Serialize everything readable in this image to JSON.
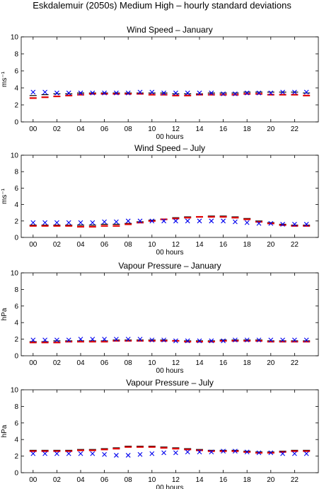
{
  "figure_title": "Eskdalemuir (2050s) Medium High – hourly standard deviations",
  "legend_note": "",
  "colors": {
    "black_marker": "#000000",
    "red_marker": "#e00000",
    "blue_marker": "#0000ee",
    "axes": "#000000"
  },
  "chart_data": [
    {
      "type": "scatter",
      "title": "Wind Speed – January",
      "xlabel": "00 hours",
      "ylabel": "ms⁻¹",
      "xlim": [
        -1,
        24
      ],
      "ylim": [
        0,
        10
      ],
      "xticks": [
        "00",
        "02",
        "04",
        "06",
        "08",
        "10",
        "12",
        "14",
        "16",
        "18",
        "20",
        "22"
      ],
      "yticks": [
        "0",
        "2",
        "4",
        "6",
        "8",
        "10"
      ],
      "x": [
        0,
        1,
        2,
        3,
        4,
        5,
        6,
        7,
        8,
        9,
        10,
        11,
        12,
        13,
        14,
        15,
        16,
        17,
        18,
        19,
        20,
        21,
        22,
        23
      ],
      "series": [
        {
          "marker": "dash",
          "color": "#000000",
          "values": [
            3.1,
            3.2,
            3.3,
            3.3,
            3.4,
            3.4,
            3.4,
            3.4,
            3.4,
            3.4,
            3.4,
            3.4,
            3.3,
            3.3,
            3.3,
            3.4,
            3.4,
            3.4,
            3.5,
            3.5,
            3.5,
            3.5,
            3.5,
            3.4
          ]
        },
        {
          "marker": "dash",
          "color": "#e00000",
          "values": [
            2.8,
            2.9,
            3.0,
            3.1,
            3.2,
            3.3,
            3.3,
            3.3,
            3.3,
            3.3,
            3.2,
            3.2,
            3.1,
            3.1,
            3.2,
            3.2,
            3.2,
            3.2,
            3.3,
            3.3,
            3.2,
            3.2,
            3.2,
            3.1
          ]
        },
        {
          "marker": "x",
          "color": "#0000ee",
          "values": [
            3.5,
            3.5,
            3.4,
            3.4,
            3.4,
            3.4,
            3.4,
            3.4,
            3.4,
            3.5,
            3.5,
            3.4,
            3.4,
            3.4,
            3.4,
            3.4,
            3.3,
            3.3,
            3.4,
            3.4,
            3.4,
            3.5,
            3.5,
            3.5
          ]
        }
      ]
    },
    {
      "type": "scatter",
      "title": "Wind Speed – July",
      "xlabel": "00 hours",
      "ylabel": "ms⁻¹",
      "xlim": [
        -1,
        24
      ],
      "ylim": [
        0,
        10
      ],
      "xticks": [
        "00",
        "02",
        "04",
        "06",
        "08",
        "10",
        "12",
        "14",
        "16",
        "18",
        "20",
        "22"
      ],
      "yticks": [
        "0",
        "2",
        "4",
        "6",
        "8",
        "10"
      ],
      "x": [
        0,
        1,
        2,
        3,
        4,
        5,
        6,
        7,
        8,
        9,
        10,
        11,
        12,
        13,
        14,
        15,
        16,
        17,
        18,
        19,
        20,
        21,
        22,
        23
      ],
      "series": [
        {
          "marker": "dash",
          "color": "#000000",
          "values": [
            1.5,
            1.5,
            1.5,
            1.5,
            1.5,
            1.5,
            1.6,
            1.6,
            1.7,
            1.9,
            2.1,
            2.2,
            2.4,
            2.5,
            2.5,
            2.6,
            2.6,
            2.5,
            2.3,
            2.0,
            1.8,
            1.6,
            1.5,
            1.5
          ]
        },
        {
          "marker": "dash",
          "color": "#e00000",
          "values": [
            1.4,
            1.4,
            1.4,
            1.4,
            1.3,
            1.3,
            1.4,
            1.4,
            1.6,
            1.8,
            2.0,
            2.2,
            2.3,
            2.4,
            2.5,
            2.5,
            2.5,
            2.4,
            2.2,
            1.9,
            1.7,
            1.5,
            1.4,
            1.4
          ]
        },
        {
          "marker": "x",
          "color": "#0000ee",
          "values": [
            1.8,
            1.8,
            1.8,
            1.8,
            1.8,
            1.8,
            1.9,
            1.9,
            2.0,
            2.0,
            2.0,
            2.0,
            2.0,
            2.0,
            2.0,
            2.0,
            2.0,
            1.9,
            1.8,
            1.7,
            1.7,
            1.6,
            1.6,
            1.6
          ]
        }
      ]
    },
    {
      "type": "scatter",
      "title": "Vapour Pressure – January",
      "xlabel": "00 hours",
      "ylabel": "hPa",
      "xlim": [
        -1,
        24
      ],
      "ylim": [
        0,
        10
      ],
      "xticks": [
        "00",
        "02",
        "04",
        "06",
        "08",
        "10",
        "12",
        "14",
        "16",
        "18",
        "20",
        "22"
      ],
      "yticks": [
        "0",
        "2",
        "4",
        "6",
        "8",
        "10"
      ],
      "x": [
        0,
        1,
        2,
        3,
        4,
        5,
        6,
        7,
        8,
        9,
        10,
        11,
        12,
        13,
        14,
        15,
        16,
        17,
        18,
        19,
        20,
        21,
        22,
        23
      ],
      "series": [
        {
          "marker": "dash",
          "color": "#000000",
          "values": [
            1.7,
            1.7,
            1.8,
            1.8,
            1.8,
            1.8,
            1.8,
            1.9,
            1.9,
            1.9,
            1.9,
            1.9,
            1.8,
            1.8,
            1.8,
            1.8,
            1.9,
            1.9,
            1.9,
            1.9,
            1.8,
            1.8,
            1.8,
            1.8
          ]
        },
        {
          "marker": "dash",
          "color": "#e00000",
          "values": [
            1.6,
            1.6,
            1.6,
            1.7,
            1.7,
            1.7,
            1.7,
            1.8,
            1.8,
            1.8,
            1.8,
            1.8,
            1.8,
            1.7,
            1.7,
            1.7,
            1.8,
            1.8,
            1.8,
            1.8,
            1.7,
            1.7,
            1.7,
            1.7
          ]
        },
        {
          "marker": "x",
          "color": "#0000ee",
          "values": [
            1.9,
            1.9,
            1.9,
            1.9,
            2.0,
            2.0,
            2.0,
            2.0,
            2.0,
            2.0,
            1.9,
            1.9,
            1.8,
            1.8,
            1.8,
            1.8,
            1.8,
            1.9,
            1.9,
            1.9,
            1.9,
            1.9,
            1.9,
            1.9
          ]
        }
      ]
    },
    {
      "type": "scatter",
      "title": "Vapour Pressure – July",
      "xlabel": "00 hours",
      "ylabel": "hPa",
      "xlim": [
        -1,
        24
      ],
      "ylim": [
        0,
        10
      ],
      "xticks": [
        "00",
        "02",
        "04",
        "06",
        "08",
        "10",
        "12",
        "14",
        "16",
        "18",
        "20",
        "22"
      ],
      "yticks": [
        "0",
        "2",
        "4",
        "6",
        "8",
        "10"
      ],
      "x": [
        0,
        1,
        2,
        3,
        4,
        5,
        6,
        7,
        8,
        9,
        10,
        11,
        12,
        13,
        14,
        15,
        16,
        17,
        18,
        19,
        20,
        21,
        22,
        23
      ],
      "series": [
        {
          "marker": "dash",
          "color": "#000000",
          "values": [
            2.7,
            2.7,
            2.7,
            2.7,
            2.8,
            2.8,
            2.9,
            3.0,
            3.2,
            3.2,
            3.2,
            3.1,
            3.0,
            2.9,
            2.8,
            2.7,
            2.7,
            2.7,
            2.6,
            2.5,
            2.5,
            2.6,
            2.7,
            2.7
          ]
        },
        {
          "marker": "dash",
          "color": "#e00000",
          "values": [
            2.6,
            2.6,
            2.6,
            2.6,
            2.7,
            2.7,
            2.8,
            2.9,
            3.1,
            3.1,
            3.1,
            3.0,
            2.9,
            2.8,
            2.7,
            2.6,
            2.6,
            2.6,
            2.5,
            2.4,
            2.4,
            2.5,
            2.6,
            2.6
          ]
        },
        {
          "marker": "x",
          "color": "#0000ee",
          "values": [
            2.3,
            2.3,
            2.3,
            2.3,
            2.3,
            2.3,
            2.2,
            2.1,
            2.1,
            2.2,
            2.3,
            2.4,
            2.4,
            2.5,
            2.5,
            2.5,
            2.6,
            2.6,
            2.5,
            2.4,
            2.4,
            2.3,
            2.3,
            2.3
          ]
        }
      ]
    }
  ]
}
